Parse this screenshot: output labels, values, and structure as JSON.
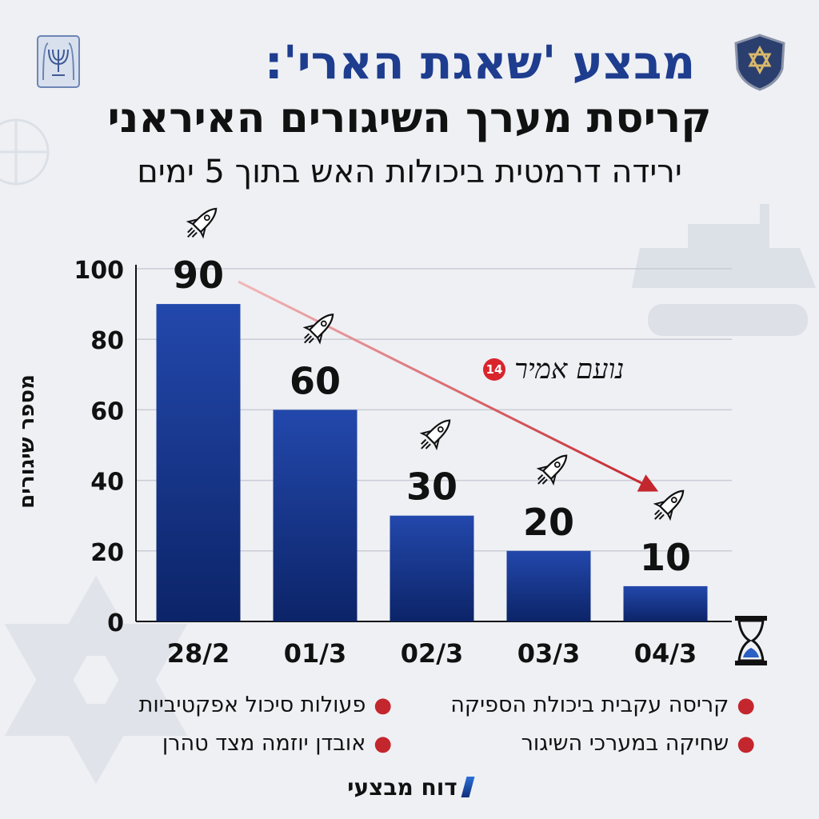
{
  "header": {
    "title_line1": "מבצע 'שאגת הארי':",
    "title_line2": "קריסת מערך השיגורים האיראני",
    "title_line3": "ירידה דרמטית ביכולות האש בתוך 5 ימים"
  },
  "watermark": {
    "text": "נועם אמיר",
    "badge": "14"
  },
  "bullets": {
    "right": [
      "קריסה עקבית ביכולת הספיקה",
      "שחיקה במערכי השיגור"
    ],
    "left": [
      "פעולות סיכול אפקטיביות",
      "אובדן יוזמה מצד טהרן"
    ]
  },
  "footer": {
    "text": "דוח מבצעי"
  },
  "colors": {
    "bar": "#1b3f9e",
    "bar_dark": "#0e2a78",
    "accent": "#1e3d8f",
    "arrow": "#c4262e",
    "bullet": "#c4262e"
  },
  "icons": [
    "emblem-icon",
    "shield-star-icon",
    "rocket-icon",
    "hourglass-icon"
  ],
  "chart_data": {
    "type": "bar",
    "categories": [
      "28/2",
      "01/3",
      "02/3",
      "03/3",
      "04/3"
    ],
    "values": [
      90,
      60,
      30,
      20,
      10
    ],
    "ylabel": "מספר שיגורים",
    "xlabel": "",
    "ylim": [
      0,
      100
    ],
    "yticks": [
      0,
      20,
      40,
      60,
      80,
      100
    ],
    "grid": true,
    "data_labels": [
      "90",
      "60",
      "30",
      "20",
      "10"
    ]
  }
}
